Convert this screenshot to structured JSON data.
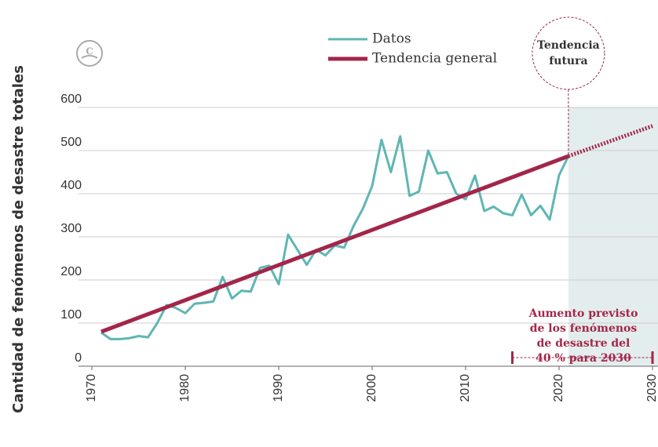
{
  "chart_data": {
    "type": "line",
    "y_label": "Cantidad de fenómenos de desastre totales",
    "xlim": [
      1970,
      2030
    ],
    "xticks": [
      1970,
      1980,
      1990,
      2000,
      2010,
      2020,
      2030
    ],
    "ylim": [
      0,
      600
    ],
    "yticks": [
      0,
      100,
      200,
      300,
      400,
      500,
      600
    ],
    "grid": true,
    "series": [
      {
        "name": "Datos",
        "color": "#5fb6b4",
        "x": [
          1971,
          1972,
          1973,
          1974,
          1975,
          1976,
          1977,
          1978,
          1979,
          1980,
          1981,
          1982,
          1983,
          1984,
          1985,
          1986,
          1987,
          1988,
          1989,
          1990,
          1991,
          1992,
          1993,
          1994,
          1995,
          1996,
          1997,
          1998,
          1999,
          2000,
          2001,
          2002,
          2003,
          2004,
          2005,
          2006,
          2007,
          2008,
          2009,
          2010,
          2011,
          2012,
          2013,
          2014,
          2015,
          2016,
          2017,
          2018,
          2019,
          2020,
          2021
        ],
        "values": [
          78,
          63,
          63,
          65,
          70,
          67,
          100,
          142,
          135,
          123,
          145,
          147,
          150,
          207,
          157,
          175,
          173,
          228,
          233,
          190,
          305,
          270,
          235,
          270,
          257,
          280,
          275,
          325,
          365,
          418,
          525,
          450,
          533,
          395,
          405,
          500,
          447,
          450,
          400,
          387,
          442,
          360,
          370,
          355,
          350,
          398,
          350,
          372,
          340,
          443,
          487
        ]
      },
      {
        "name": "Tendencia general",
        "color": "#a3264a",
        "x": [
          1971,
          2021
        ],
        "values": [
          80,
          487
        ]
      }
    ],
    "projection": {
      "x": [
        2021,
        2030
      ],
      "values": [
        487,
        557
      ]
    },
    "future_label": [
      "Tendencia",
      "futura"
    ],
    "annotation": [
      "Aumento previsto",
      "de los fenómenos",
      "de desastre del",
      "40 % para 2030"
    ],
    "forecast_range": [
      2015,
      2030
    ]
  }
}
